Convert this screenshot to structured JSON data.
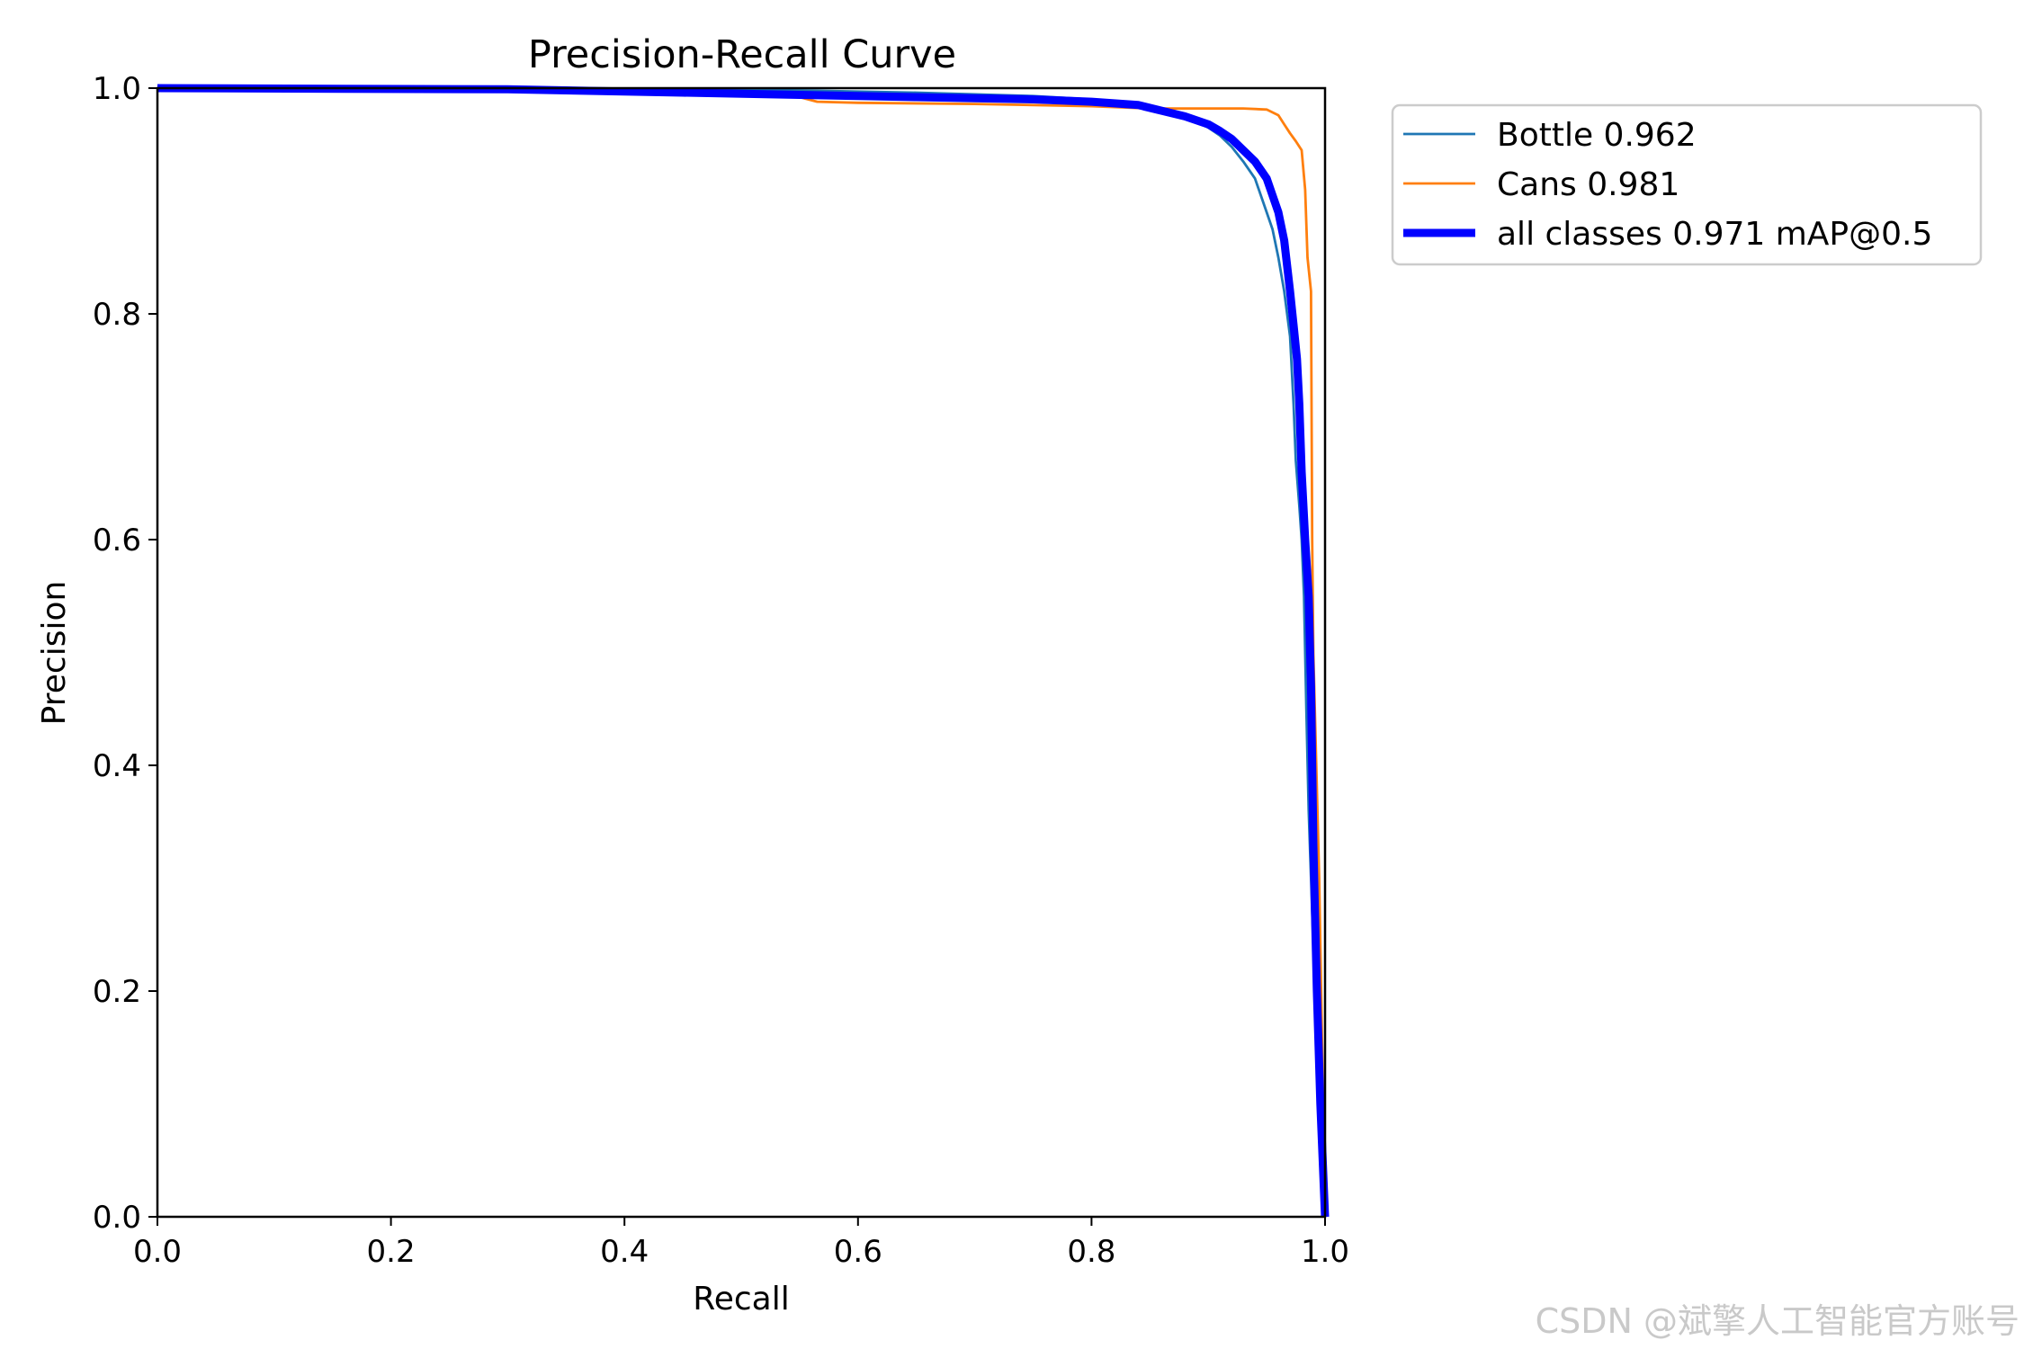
{
  "chart_data": {
    "type": "line",
    "title": "Precision-Recall Curve",
    "xlabel": "Recall",
    "ylabel": "Precision",
    "xlim": [
      0.0,
      1.0
    ],
    "ylim": [
      0.0,
      1.0
    ],
    "xticks": [
      "0.0",
      "0.2",
      "0.4",
      "0.6",
      "0.8",
      "1.0"
    ],
    "yticks": [
      "0.0",
      "0.2",
      "0.4",
      "0.6",
      "0.8",
      "1.0"
    ],
    "grid": false,
    "legend_position": "outside-top-right",
    "series": [
      {
        "name": "Bottle 0.962",
        "color": "#1f77b4",
        "weight": "thin",
        "points": [
          [
            0.0,
            1.0
          ],
          [
            0.3,
            1.0
          ],
          [
            0.45,
            0.999
          ],
          [
            0.55,
            0.998
          ],
          [
            0.65,
            0.996
          ],
          [
            0.75,
            0.993
          ],
          [
            0.8,
            0.99
          ],
          [
            0.83,
            0.987
          ],
          [
            0.86,
            0.982
          ],
          [
            0.88,
            0.975
          ],
          [
            0.9,
            0.965
          ],
          [
            0.91,
            0.958
          ],
          [
            0.92,
            0.948
          ],
          [
            0.93,
            0.935
          ],
          [
            0.94,
            0.92
          ],
          [
            0.945,
            0.905
          ],
          [
            0.95,
            0.89
          ],
          [
            0.955,
            0.875
          ],
          [
            0.96,
            0.85
          ],
          [
            0.965,
            0.82
          ],
          [
            0.97,
            0.78
          ],
          [
            0.973,
            0.72
          ],
          [
            0.975,
            0.67
          ],
          [
            0.978,
            0.63
          ],
          [
            0.98,
            0.6
          ],
          [
            0.982,
            0.55
          ],
          [
            0.984,
            0.45
          ],
          [
            0.986,
            0.36
          ],
          [
            0.988,
            0.3
          ],
          [
            0.99,
            0.24
          ],
          [
            0.992,
            0.2
          ],
          [
            0.995,
            0.13
          ],
          [
            0.998,
            0.07
          ],
          [
            1.0,
            0.0
          ]
        ]
      },
      {
        "name": "Cans 0.981",
        "color": "#ff7f0e",
        "weight": "thin",
        "points": [
          [
            0.0,
            1.0
          ],
          [
            0.3,
            1.0
          ],
          [
            0.45,
            0.997
          ],
          [
            0.55,
            0.992
          ],
          [
            0.565,
            0.988
          ],
          [
            0.6,
            0.987
          ],
          [
            0.7,
            0.986
          ],
          [
            0.8,
            0.984
          ],
          [
            0.85,
            0.982
          ],
          [
            0.9,
            0.982
          ],
          [
            0.93,
            0.982
          ],
          [
            0.95,
            0.981
          ],
          [
            0.96,
            0.976
          ],
          [
            0.965,
            0.968
          ],
          [
            0.97,
            0.96
          ],
          [
            0.975,
            0.953
          ],
          [
            0.98,
            0.945
          ],
          [
            0.983,
            0.91
          ],
          [
            0.985,
            0.85
          ],
          [
            0.988,
            0.82
          ],
          [
            0.989,
            0.6
          ],
          [
            0.99,
            0.5
          ],
          [
            0.995,
            0.3
          ],
          [
            1.0,
            0.0
          ]
        ]
      },
      {
        "name": "all classes 0.971 mAP@0.5",
        "color": "#0000ff",
        "weight": "thick",
        "points": [
          [
            0.0,
            1.0
          ],
          [
            0.3,
            0.999
          ],
          [
            0.45,
            0.996
          ],
          [
            0.55,
            0.994
          ],
          [
            0.65,
            0.992
          ],
          [
            0.75,
            0.99
          ],
          [
            0.8,
            0.988
          ],
          [
            0.84,
            0.985
          ],
          [
            0.86,
            0.98
          ],
          [
            0.88,
            0.975
          ],
          [
            0.9,
            0.968
          ],
          [
            0.91,
            0.962
          ],
          [
            0.92,
            0.955
          ],
          [
            0.93,
            0.945
          ],
          [
            0.94,
            0.935
          ],
          [
            0.95,
            0.92
          ],
          [
            0.955,
            0.905
          ],
          [
            0.96,
            0.89
          ],
          [
            0.965,
            0.865
          ],
          [
            0.97,
            0.82
          ],
          [
            0.973,
            0.79
          ],
          [
            0.976,
            0.76
          ],
          [
            0.978,
            0.72
          ],
          [
            0.98,
            0.66
          ],
          [
            0.983,
            0.6
          ],
          [
            0.986,
            0.55
          ],
          [
            0.988,
            0.47
          ],
          [
            0.99,
            0.33
          ],
          [
            0.993,
            0.2
          ],
          [
            0.996,
            0.1
          ],
          [
            1.0,
            0.0
          ]
        ]
      }
    ]
  },
  "watermark": "CSDN @斌擎人工智能官方账号"
}
